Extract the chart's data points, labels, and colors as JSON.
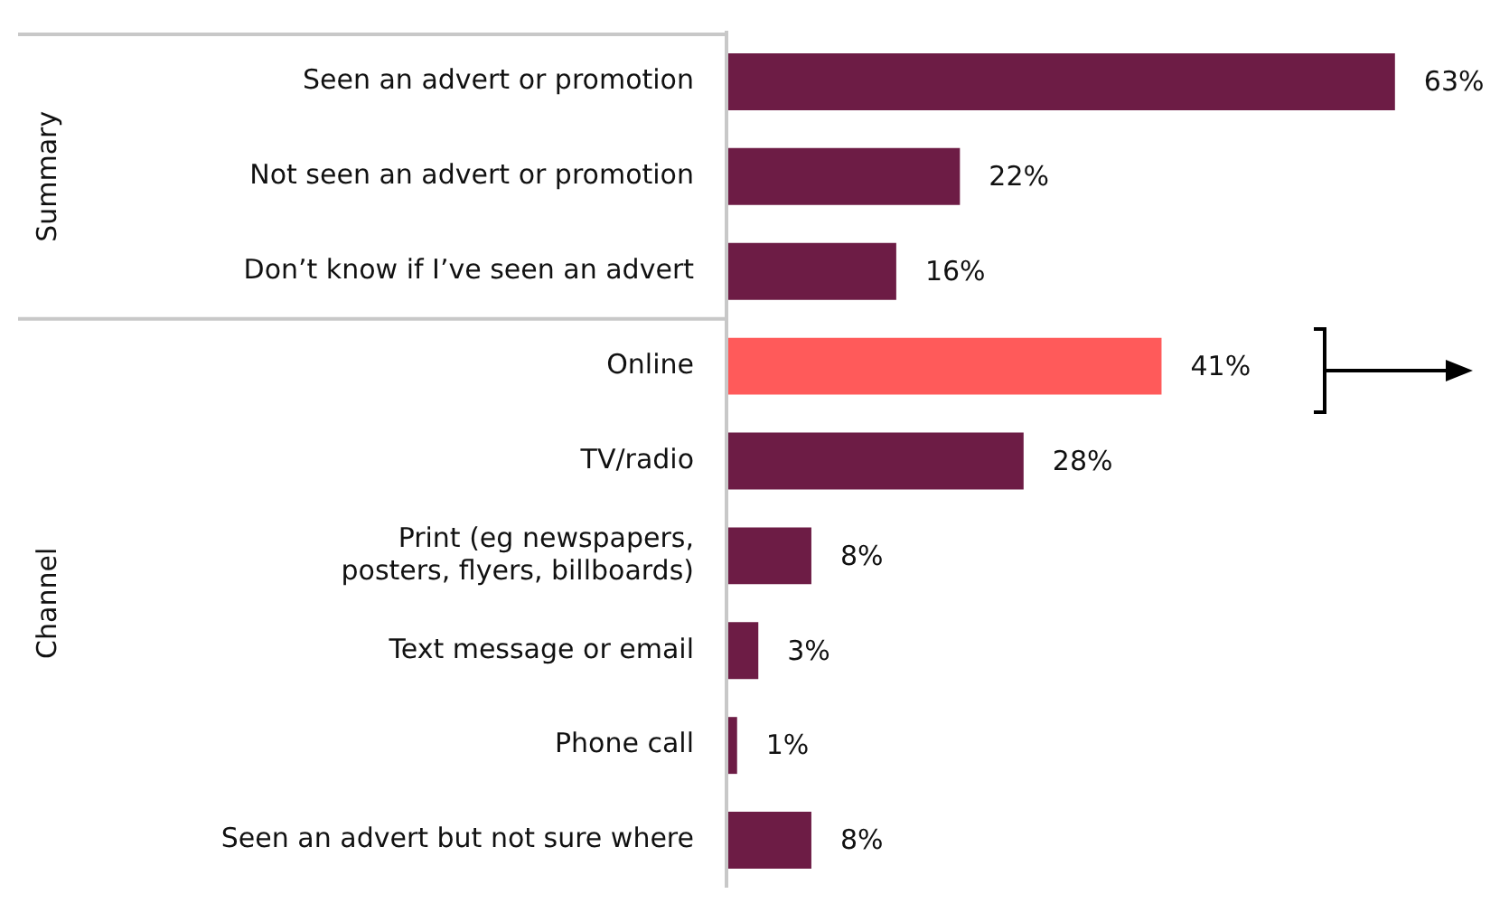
{
  "chart_data": {
    "type": "bar",
    "orientation": "horizontal",
    "categories": [
      "Seen an advert or promotion",
      "Not seen an advert or promotion",
      "Don’t know if I’ve seen an advert",
      "Online",
      "TV/radio",
      "Print (eg newspapers, posters, flyers, billboards)",
      "Text message or email",
      "Phone call",
      "Seen an advert but not sure where"
    ],
    "values": [
      63,
      22,
      16,
      41,
      28,
      8,
      3,
      1,
      8
    ],
    "colors": [
      "#6d1c45",
      "#6d1c45",
      "#6d1c45",
      "#ff5a5a",
      "#6d1c45",
      "#6d1c45",
      "#6d1c45",
      "#6d1c45",
      "#6d1c45"
    ],
    "value_labels": [
      "63%",
      "22%",
      "16%",
      "41%",
      "28%",
      "8%",
      "3%",
      "1%",
      "8%"
    ],
    "annotations": [
      "Summary",
      "Channel"
    ],
    "legend": false
  }
}
